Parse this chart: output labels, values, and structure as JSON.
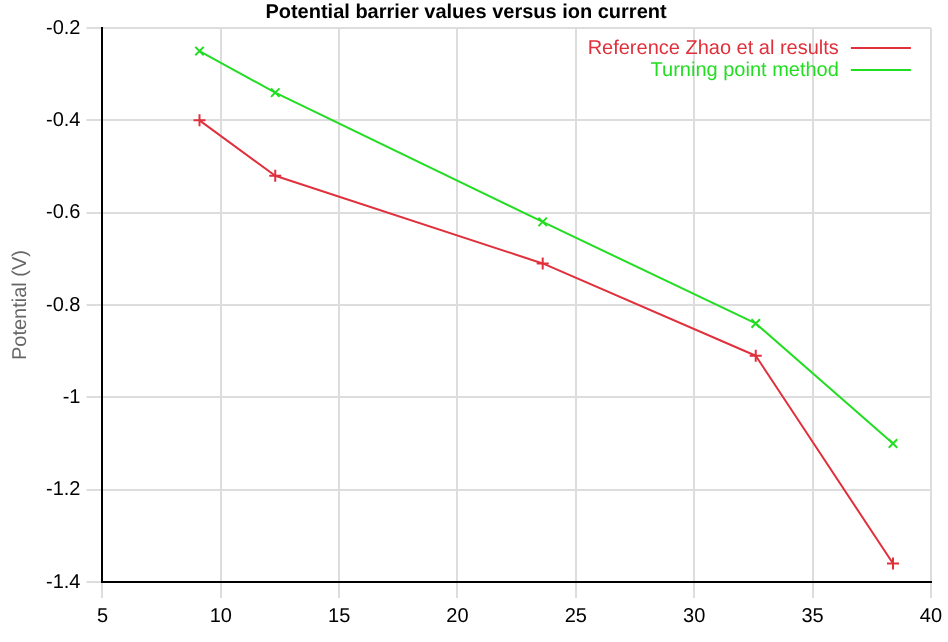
{
  "chart_data": {
    "type": "line",
    "title": "Potential barrier values versus ion current",
    "ylabel": "Potential (V)",
    "xlim": [
      5,
      40
    ],
    "xticks": [
      5,
      10,
      15,
      20,
      25,
      30,
      35,
      40
    ],
    "ylim": [
      -1.4,
      -0.2
    ],
    "yticks": [
      -1.4,
      -1.2,
      -1,
      -0.8,
      -0.6,
      -0.4,
      -0.2
    ],
    "grid": true,
    "legend": "top right",
    "marker": "cross",
    "line_style": "solid",
    "series": [
      {
        "name": "Reference Zhao et al results",
        "color": "#e0303c",
        "x": [
          9.1,
          12.3,
          23.6,
          32.6,
          38.4
        ],
        "values": [
          -0.4,
          -0.52,
          -0.71,
          -0.91,
          -1.36
        ]
      },
      {
        "name": "Turning point method",
        "color": "#22dd22",
        "x": [
          9.1,
          12.3,
          23.6,
          32.6,
          38.4
        ],
        "values": [
          -0.25,
          -0.34,
          -0.62,
          -0.84,
          -1.1
        ]
      }
    ]
  }
}
